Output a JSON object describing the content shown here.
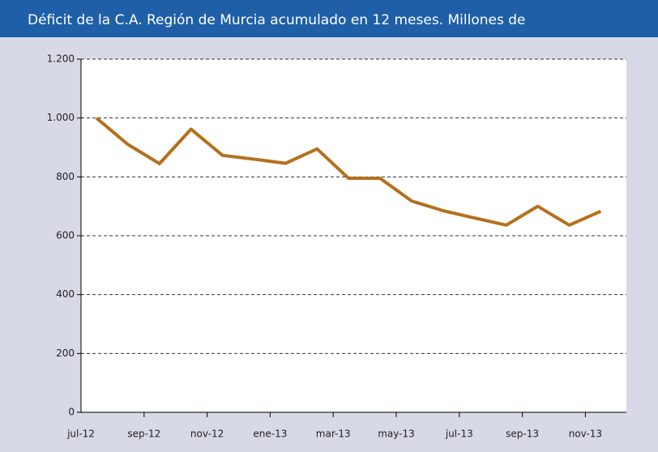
{
  "chart_data": {
    "type": "line",
    "title": "Déficit de la C.A. Región de Murcia acumulado en 12 meses. Millones de",
    "categories": [
      "jul-12",
      null,
      "sep-12",
      null,
      "nov-12",
      null,
      "ene-13",
      null,
      "mar-13",
      null,
      "may-13",
      null,
      "jul-13",
      null,
      "sep-13",
      null,
      "nov-13"
    ],
    "series": [
      {
        "name": "Déficit",
        "color": "#b5701c",
        "values": [
          1000,
          910,
          845,
          962,
          873,
          860,
          846,
          895,
          795,
          795,
          718,
          685,
          660,
          636,
          700,
          636,
          683
        ]
      }
    ],
    "ylim": [
      0,
      1200
    ],
    "yticks": [
      0,
      200,
      400,
      600,
      800,
      {
        "value": 1000,
        "label": "1.000"
      },
      {
        "value": 1200,
        "label": "1.200"
      }
    ],
    "grid": true
  }
}
